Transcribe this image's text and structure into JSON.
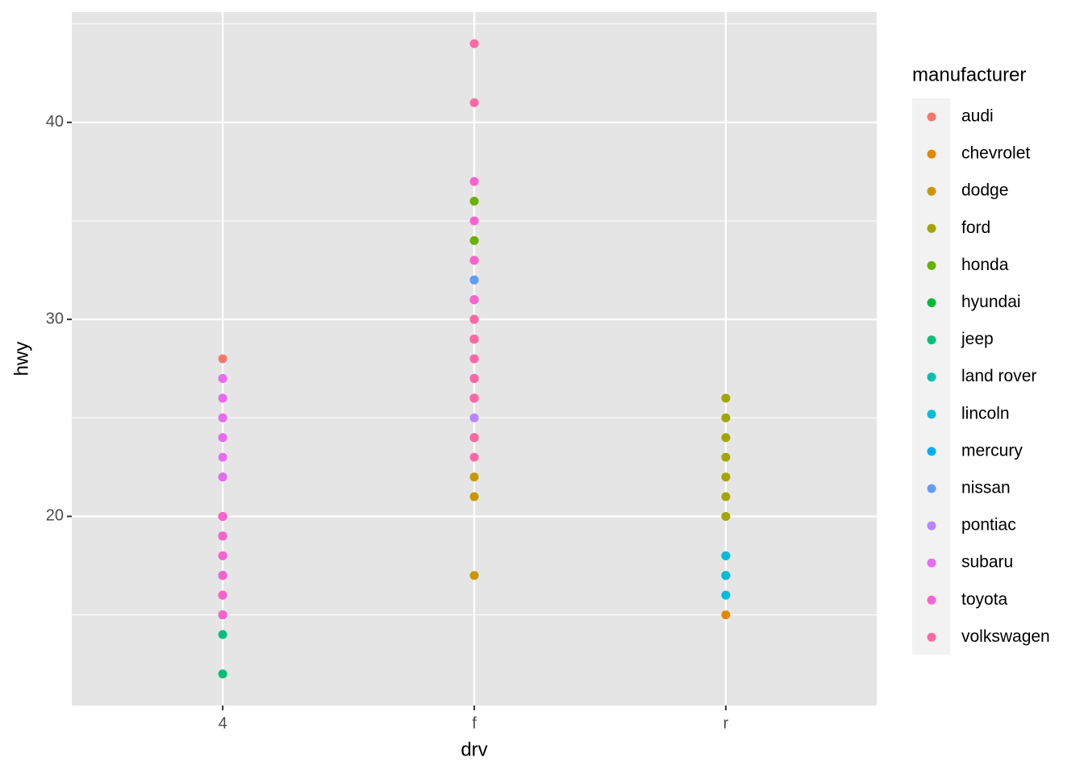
{
  "chart_data": {
    "type": "scatter",
    "xlabel": "drv",
    "ylabel": "hwy",
    "legend_title": "manufacturer",
    "categories": [
      "4",
      "f",
      "r"
    ],
    "ylim": [
      10.4,
      45.6
    ],
    "yticks": [
      20,
      30,
      40
    ],
    "grid": true,
    "legend": "right",
    "series": [
      {
        "name": "audi",
        "color": "#F8766D",
        "x": [
          "4",
          "4",
          "4",
          "4",
          "4",
          "f",
          "f",
          "f",
          "f"
        ],
        "values": [
          28,
          27,
          26,
          25,
          24,
          29,
          31,
          30,
          26
        ]
      },
      {
        "name": "chevrolet",
        "color": "#E58700",
        "x": [
          "r",
          "r",
          "4",
          "4",
          "4",
          "f",
          "f",
          "f"
        ],
        "values": [
          15,
          17,
          17,
          15,
          20,
          26,
          29,
          27
        ]
      },
      {
        "name": "dodge",
        "color": "#C99800",
        "x": [
          "f",
          "f",
          "f",
          "f",
          "4",
          "4",
          "4",
          "4",
          "4"
        ],
        "values": [
          24,
          17,
          22,
          21,
          17,
          15,
          12,
          16,
          19
        ]
      },
      {
        "name": "ford",
        "color": "#A3A500",
        "x": [
          "4",
          "4",
          "4",
          "4",
          "r",
          "r",
          "r",
          "r",
          "r",
          "r",
          "r",
          "r",
          "r"
        ],
        "values": [
          17,
          16,
          19,
          20,
          26,
          25,
          24,
          23,
          22,
          21,
          20,
          18,
          17
        ]
      },
      {
        "name": "honda",
        "color": "#6BB100",
        "x": [
          "f",
          "f",
          "f",
          "f",
          "f"
        ],
        "values": [
          36,
          34,
          32,
          33,
          29
        ]
      },
      {
        "name": "hyundai",
        "color": "#00BA38",
        "x": [
          "f",
          "f",
          "f",
          "f",
          "f",
          "f"
        ],
        "values": [
          26,
          29,
          24,
          27,
          31,
          30
        ]
      },
      {
        "name": "jeep",
        "color": "#00BF7D",
        "x": [
          "4",
          "4",
          "4",
          "4",
          "4"
        ],
        "values": [
          14,
          12,
          17,
          19,
          22
        ]
      },
      {
        "name": "land rover",
        "color": "#00C0AF",
        "x": [
          "4",
          "4"
        ],
        "values": [
          15,
          17
        ]
      },
      {
        "name": "lincoln",
        "color": "#00BCD8",
        "x": [
          "r",
          "r",
          "r"
        ],
        "values": [
          18,
          17,
          16
        ]
      },
      {
        "name": "mercury",
        "color": "#00B0F6",
        "x": [
          "4",
          "4"
        ],
        "values": [
          17,
          19
        ]
      },
      {
        "name": "nissan",
        "color": "#619CFF",
        "x": [
          "f",
          "f",
          "f",
          "f",
          "f",
          "4",
          "4"
        ],
        "values": [
          32,
          29,
          26,
          27,
          31,
          17,
          18
        ]
      },
      {
        "name": "pontiac",
        "color": "#B983FF",
        "x": [
          "f",
          "f",
          "f",
          "f"
        ],
        "values": [
          25,
          26,
          28,
          29
        ]
      },
      {
        "name": "subaru",
        "color": "#E76BF3",
        "x": [
          "4",
          "4",
          "4",
          "4",
          "4",
          "4",
          "4"
        ],
        "values": [
          27,
          26,
          25,
          24,
          23,
          22,
          20
        ]
      },
      {
        "name": "toyota",
        "color": "#FD61D1",
        "x": [
          "4",
          "4",
          "4",
          "4",
          "4",
          "4",
          "f",
          "f",
          "f",
          "f",
          "f",
          "f",
          "f",
          "f",
          "f",
          "f"
        ],
        "values": [
          17,
          18,
          19,
          20,
          15,
          16,
          37,
          35,
          33,
          31,
          30,
          29,
          28,
          27,
          26,
          24
        ]
      },
      {
        "name": "volkswagen",
        "color": "#FF67A4",
        "x": [
          "f",
          "f",
          "f",
          "f",
          "f",
          "f",
          "f",
          "f",
          "f"
        ],
        "values": [
          44,
          41,
          29,
          28,
          26,
          24,
          23,
          30,
          27
        ]
      }
    ]
  }
}
